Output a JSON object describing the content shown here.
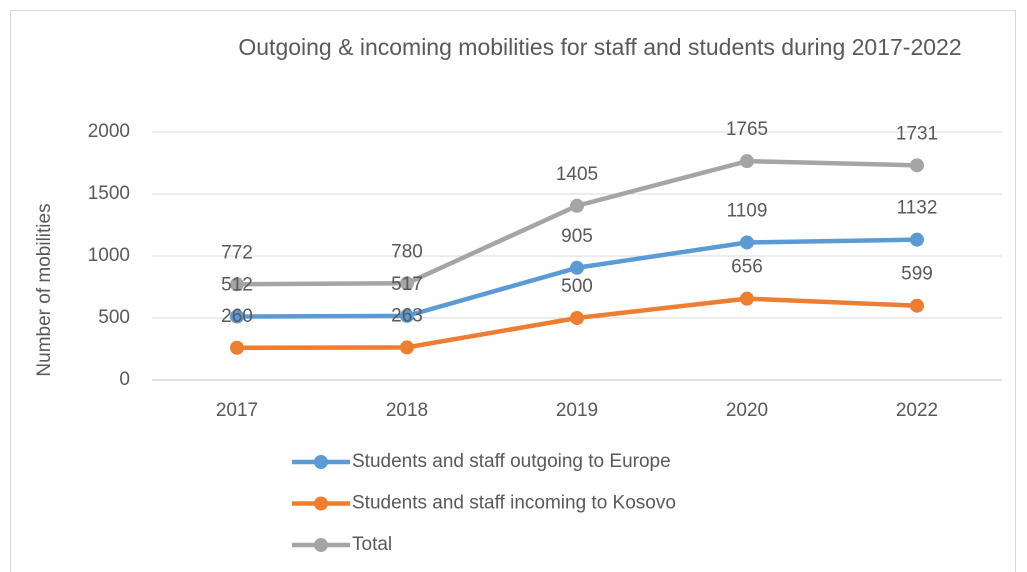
{
  "chart_data": {
    "type": "line",
    "title": "Outgoing & incoming mobilities for staff and students during 2017-2022",
    "y_label": "Number of mobilities",
    "categories": [
      "2017",
      "2018",
      "2019",
      "2020",
      "2022"
    ],
    "series": [
      {
        "name": "Students and staff outgoing to Europe",
        "color": "#5b9bd5",
        "values": [
          512,
          517,
          905,
          1109,
          1132
        ]
      },
      {
        "name": "Students and staff incoming to Kosovo",
        "color": "#ed7d31",
        "values": [
          260,
          263,
          500,
          656,
          599
        ]
      },
      {
        "name": "Total",
        "color": "#a5a5a5",
        "values": [
          772,
          780,
          1405,
          1765,
          1731
        ]
      }
    ],
    "ylim": [
      0,
      2000
    ],
    "yticks": [
      0,
      500,
      1000,
      1500,
      2000
    ],
    "grid": true,
    "legend": "bottom"
  }
}
